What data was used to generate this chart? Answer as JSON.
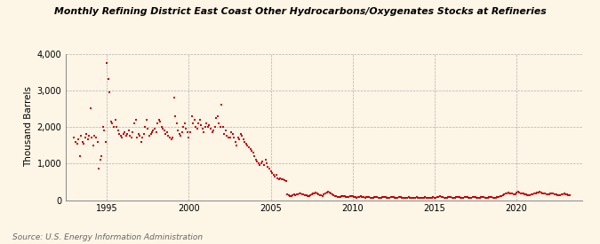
{
  "title": "Monthly Refining District East Coast Other Hydrocarbons/Oxygenates Stocks at Refineries",
  "ylabel": "Thousand Barrels",
  "source": "Source: U.S. Energy Information Administration",
  "background_color": "#fdf5e6",
  "dot_color": "#cc0000",
  "ylim": [
    0,
    4000
  ],
  "yticks": [
    0,
    1000,
    2000,
    3000,
    4000
  ],
  "ytick_labels": [
    "0",
    "1,000",
    "2,000",
    "3,000",
    "4,000"
  ],
  "xticks": [
    1995,
    2000,
    2005,
    2010,
    2015,
    2020
  ],
  "xlim_start": 1992.5,
  "xlim_end": 2024.0,
  "data": [
    [
      1993.0,
      1700
    ],
    [
      1993.08,
      1600
    ],
    [
      1993.17,
      1550
    ],
    [
      1993.25,
      1650
    ],
    [
      1993.33,
      1200
    ],
    [
      1993.42,
      1750
    ],
    [
      1993.5,
      1600
    ],
    [
      1993.58,
      1550
    ],
    [
      1993.67,
      1700
    ],
    [
      1993.75,
      1800
    ],
    [
      1993.83,
      1650
    ],
    [
      1993.92,
      1750
    ],
    [
      1994.0,
      2500
    ],
    [
      1994.08,
      1700
    ],
    [
      1994.17,
      1500
    ],
    [
      1994.25,
      1750
    ],
    [
      1994.33,
      1700
    ],
    [
      1994.42,
      1600
    ],
    [
      1994.5,
      850
    ],
    [
      1994.58,
      1100
    ],
    [
      1994.67,
      1200
    ],
    [
      1994.75,
      2000
    ],
    [
      1994.83,
      1900
    ],
    [
      1994.92,
      1600
    ],
    [
      1995.0,
      3750
    ],
    [
      1995.08,
      3300
    ],
    [
      1995.17,
      2950
    ],
    [
      1995.25,
      2150
    ],
    [
      1995.33,
      2100
    ],
    [
      1995.42,
      2000
    ],
    [
      1995.5,
      2200
    ],
    [
      1995.58,
      2000
    ],
    [
      1995.67,
      1900
    ],
    [
      1995.75,
      1800
    ],
    [
      1995.83,
      1750
    ],
    [
      1995.92,
      1700
    ],
    [
      1996.0,
      1800
    ],
    [
      1996.08,
      1850
    ],
    [
      1996.17,
      1750
    ],
    [
      1996.25,
      1800
    ],
    [
      1996.33,
      1900
    ],
    [
      1996.42,
      1750
    ],
    [
      1996.5,
      1700
    ],
    [
      1996.58,
      1850
    ],
    [
      1996.67,
      2100
    ],
    [
      1996.75,
      2200
    ],
    [
      1996.83,
      1700
    ],
    [
      1996.92,
      1800
    ],
    [
      1997.0,
      1750
    ],
    [
      1997.08,
      1600
    ],
    [
      1997.17,
      1700
    ],
    [
      1997.25,
      1800
    ],
    [
      1997.33,
      2000
    ],
    [
      1997.42,
      2200
    ],
    [
      1997.5,
      1950
    ],
    [
      1997.58,
      1750
    ],
    [
      1997.67,
      1800
    ],
    [
      1997.75,
      1850
    ],
    [
      1997.83,
      1900
    ],
    [
      1997.92,
      1950
    ],
    [
      1998.0,
      1850
    ],
    [
      1998.08,
      2100
    ],
    [
      1998.17,
      2200
    ],
    [
      1998.25,
      2150
    ],
    [
      1998.33,
      2000
    ],
    [
      1998.42,
      1950
    ],
    [
      1998.5,
      1900
    ],
    [
      1998.58,
      1800
    ],
    [
      1998.67,
      1850
    ],
    [
      1998.75,
      1750
    ],
    [
      1998.83,
      1700
    ],
    [
      1998.92,
      1650
    ],
    [
      1999.0,
      1700
    ],
    [
      1999.08,
      2800
    ],
    [
      1999.17,
      2300
    ],
    [
      1999.25,
      2100
    ],
    [
      1999.33,
      1900
    ],
    [
      1999.42,
      1800
    ],
    [
      1999.5,
      1750
    ],
    [
      1999.58,
      1850
    ],
    [
      1999.67,
      2000
    ],
    [
      1999.75,
      2100
    ],
    [
      1999.83,
      1950
    ],
    [
      1999.92,
      1850
    ],
    [
      2000.0,
      1700
    ],
    [
      2000.08,
      1850
    ],
    [
      2000.17,
      2300
    ],
    [
      2000.25,
      2100
    ],
    [
      2000.33,
      2200
    ],
    [
      2000.42,
      2000
    ],
    [
      2000.5,
      1950
    ],
    [
      2000.58,
      2100
    ],
    [
      2000.67,
      2200
    ],
    [
      2000.75,
      2050
    ],
    [
      2000.83,
      1950
    ],
    [
      2000.92,
      1850
    ],
    [
      2001.0,
      2000
    ],
    [
      2001.08,
      2100
    ],
    [
      2001.17,
      2000
    ],
    [
      2001.25,
      2050
    ],
    [
      2001.33,
      1950
    ],
    [
      2001.42,
      1850
    ],
    [
      2001.5,
      1900
    ],
    [
      2001.58,
      2000
    ],
    [
      2001.67,
      2250
    ],
    [
      2001.75,
      2300
    ],
    [
      2001.83,
      2100
    ],
    [
      2001.92,
      2000
    ],
    [
      2002.0,
      2600
    ],
    [
      2002.08,
      2000
    ],
    [
      2002.17,
      1800
    ],
    [
      2002.25,
      1900
    ],
    [
      2002.33,
      1750
    ],
    [
      2002.42,
      1700
    ],
    [
      2002.5,
      1700
    ],
    [
      2002.58,
      1850
    ],
    [
      2002.67,
      1800
    ],
    [
      2002.75,
      1700
    ],
    [
      2002.83,
      1600
    ],
    [
      2002.92,
      1500
    ],
    [
      2003.0,
      1700
    ],
    [
      2003.08,
      1650
    ],
    [
      2003.17,
      1800
    ],
    [
      2003.25,
      1750
    ],
    [
      2003.33,
      1650
    ],
    [
      2003.42,
      1600
    ],
    [
      2003.5,
      1550
    ],
    [
      2003.58,
      1500
    ],
    [
      2003.67,
      1450
    ],
    [
      2003.75,
      1400
    ],
    [
      2003.83,
      1350
    ],
    [
      2003.92,
      1300
    ],
    [
      2004.0,
      1200
    ],
    [
      2004.08,
      1100
    ],
    [
      2004.17,
      1050
    ],
    [
      2004.25,
      1000
    ],
    [
      2004.33,
      950
    ],
    [
      2004.42,
      1000
    ],
    [
      2004.5,
      1050
    ],
    [
      2004.58,
      950
    ],
    [
      2004.67,
      1100
    ],
    [
      2004.75,
      1000
    ],
    [
      2004.83,
      900
    ],
    [
      2004.92,
      850
    ],
    [
      2005.0,
      800
    ],
    [
      2005.08,
      750
    ],
    [
      2005.17,
      700
    ],
    [
      2005.25,
      650
    ],
    [
      2005.33,
      680
    ],
    [
      2005.42,
      600
    ],
    [
      2005.5,
      580
    ],
    [
      2005.58,
      600
    ],
    [
      2005.67,
      580
    ],
    [
      2005.75,
      560
    ],
    [
      2005.83,
      540
    ],
    [
      2005.92,
      520
    ],
    [
      2006.0,
      150
    ],
    [
      2006.08,
      130
    ],
    [
      2006.17,
      120
    ],
    [
      2006.25,
      110
    ],
    [
      2006.33,
      130
    ],
    [
      2006.42,
      150
    ],
    [
      2006.5,
      140
    ],
    [
      2006.58,
      160
    ],
    [
      2006.67,
      150
    ],
    [
      2006.75,
      170
    ],
    [
      2006.83,
      180
    ],
    [
      2006.92,
      160
    ],
    [
      2007.0,
      150
    ],
    [
      2007.08,
      140
    ],
    [
      2007.17,
      130
    ],
    [
      2007.25,
      120
    ],
    [
      2007.33,
      110
    ],
    [
      2007.42,
      130
    ],
    [
      2007.5,
      150
    ],
    [
      2007.58,
      170
    ],
    [
      2007.67,
      190
    ],
    [
      2007.75,
      200
    ],
    [
      2007.83,
      180
    ],
    [
      2007.92,
      160
    ],
    [
      2008.0,
      140
    ],
    [
      2008.08,
      130
    ],
    [
      2008.17,
      120
    ],
    [
      2008.25,
      150
    ],
    [
      2008.33,
      180
    ],
    [
      2008.42,
      200
    ],
    [
      2008.5,
      220
    ],
    [
      2008.58,
      200
    ],
    [
      2008.67,
      180
    ],
    [
      2008.75,
      160
    ],
    [
      2008.83,
      140
    ],
    [
      2008.92,
      120
    ],
    [
      2009.0,
      100
    ],
    [
      2009.08,
      90
    ],
    [
      2009.17,
      80
    ],
    [
      2009.25,
      90
    ],
    [
      2009.33,
      100
    ],
    [
      2009.42,
      110
    ],
    [
      2009.5,
      100
    ],
    [
      2009.58,
      90
    ],
    [
      2009.67,
      80
    ],
    [
      2009.75,
      90
    ],
    [
      2009.83,
      100
    ],
    [
      2009.92,
      110
    ],
    [
      2010.0,
      100
    ],
    [
      2010.08,
      90
    ],
    [
      2010.17,
      80
    ],
    [
      2010.25,
      70
    ],
    [
      2010.33,
      80
    ],
    [
      2010.42,
      90
    ],
    [
      2010.5,
      100
    ],
    [
      2010.58,
      90
    ],
    [
      2010.67,
      80
    ],
    [
      2010.75,
      70
    ],
    [
      2010.83,
      80
    ],
    [
      2010.92,
      90
    ],
    [
      2011.0,
      80
    ],
    [
      2011.08,
      70
    ],
    [
      2011.17,
      60
    ],
    [
      2011.25,
      70
    ],
    [
      2011.33,
      80
    ],
    [
      2011.42,
      90
    ],
    [
      2011.5,
      80
    ],
    [
      2011.58,
      70
    ],
    [
      2011.67,
      60
    ],
    [
      2011.75,
      70
    ],
    [
      2011.83,
      80
    ],
    [
      2011.92,
      90
    ],
    [
      2012.0,
      80
    ],
    [
      2012.08,
      70
    ],
    [
      2012.17,
      60
    ],
    [
      2012.25,
      70
    ],
    [
      2012.33,
      80
    ],
    [
      2012.42,
      90
    ],
    [
      2012.5,
      80
    ],
    [
      2012.58,
      70
    ],
    [
      2012.67,
      60
    ],
    [
      2012.75,
      70
    ],
    [
      2012.83,
      80
    ],
    [
      2012.92,
      90
    ],
    [
      2013.0,
      70
    ],
    [
      2013.08,
      60
    ],
    [
      2013.17,
      50
    ],
    [
      2013.25,
      60
    ],
    [
      2013.33,
      70
    ],
    [
      2013.42,
      80
    ],
    [
      2013.5,
      70
    ],
    [
      2013.58,
      60
    ],
    [
      2013.67,
      50
    ],
    [
      2013.75,
      60
    ],
    [
      2013.83,
      70
    ],
    [
      2013.92,
      80
    ],
    [
      2014.0,
      70
    ],
    [
      2014.08,
      60
    ],
    [
      2014.17,
      50
    ],
    [
      2014.25,
      60
    ],
    [
      2014.33,
      70
    ],
    [
      2014.42,
      80
    ],
    [
      2014.5,
      70
    ],
    [
      2014.58,
      60
    ],
    [
      2014.67,
      50
    ],
    [
      2014.75,
      60
    ],
    [
      2014.83,
      70
    ],
    [
      2014.92,
      80
    ],
    [
      2015.0,
      70
    ],
    [
      2015.08,
      60
    ],
    [
      2015.17,
      80
    ],
    [
      2015.25,
      90
    ],
    [
      2015.33,
      100
    ],
    [
      2015.42,
      90
    ],
    [
      2015.5,
      80
    ],
    [
      2015.58,
      70
    ],
    [
      2015.67,
      60
    ],
    [
      2015.75,
      70
    ],
    [
      2015.83,
      80
    ],
    [
      2015.92,
      90
    ],
    [
      2016.0,
      80
    ],
    [
      2016.08,
      70
    ],
    [
      2016.17,
      60
    ],
    [
      2016.25,
      70
    ],
    [
      2016.33,
      80
    ],
    [
      2016.42,
      90
    ],
    [
      2016.5,
      80
    ],
    [
      2016.58,
      70
    ],
    [
      2016.67,
      60
    ],
    [
      2016.75,
      70
    ],
    [
      2016.83,
      80
    ],
    [
      2016.92,
      90
    ],
    [
      2017.0,
      80
    ],
    [
      2017.08,
      70
    ],
    [
      2017.17,
      60
    ],
    [
      2017.25,
      70
    ],
    [
      2017.33,
      80
    ],
    [
      2017.42,
      90
    ],
    [
      2017.5,
      80
    ],
    [
      2017.58,
      70
    ],
    [
      2017.67,
      60
    ],
    [
      2017.75,
      70
    ],
    [
      2017.83,
      80
    ],
    [
      2017.92,
      90
    ],
    [
      2018.0,
      80
    ],
    [
      2018.08,
      70
    ],
    [
      2018.17,
      60
    ],
    [
      2018.25,
      70
    ],
    [
      2018.33,
      80
    ],
    [
      2018.42,
      90
    ],
    [
      2018.5,
      80
    ],
    [
      2018.58,
      70
    ],
    [
      2018.67,
      60
    ],
    [
      2018.75,
      70
    ],
    [
      2018.83,
      80
    ],
    [
      2018.92,
      90
    ],
    [
      2019.0,
      100
    ],
    [
      2019.08,
      110
    ],
    [
      2019.17,
      130
    ],
    [
      2019.25,
      150
    ],
    [
      2019.33,
      170
    ],
    [
      2019.42,
      180
    ],
    [
      2019.5,
      200
    ],
    [
      2019.58,
      190
    ],
    [
      2019.67,
      180
    ],
    [
      2019.75,
      170
    ],
    [
      2019.83,
      160
    ],
    [
      2019.92,
      150
    ],
    [
      2020.0,
      200
    ],
    [
      2020.08,
      220
    ],
    [
      2020.17,
      200
    ],
    [
      2020.25,
      190
    ],
    [
      2020.33,
      180
    ],
    [
      2020.42,
      170
    ],
    [
      2020.5,
      160
    ],
    [
      2020.58,
      150
    ],
    [
      2020.67,
      140
    ],
    [
      2020.75,
      130
    ],
    [
      2020.83,
      140
    ],
    [
      2020.92,
      150
    ],
    [
      2021.0,
      160
    ],
    [
      2021.08,
      170
    ],
    [
      2021.17,
      180
    ],
    [
      2021.25,
      200
    ],
    [
      2021.33,
      210
    ],
    [
      2021.42,
      220
    ],
    [
      2021.5,
      200
    ],
    [
      2021.58,
      190
    ],
    [
      2021.67,
      180
    ],
    [
      2021.75,
      170
    ],
    [
      2021.83,
      160
    ],
    [
      2021.92,
      150
    ],
    [
      2022.0,
      160
    ],
    [
      2022.08,
      170
    ],
    [
      2022.17,
      180
    ],
    [
      2022.25,
      170
    ],
    [
      2022.33,
      160
    ],
    [
      2022.42,
      150
    ],
    [
      2022.5,
      140
    ],
    [
      2022.58,
      130
    ],
    [
      2022.67,
      140
    ],
    [
      2022.75,
      150
    ],
    [
      2022.83,
      160
    ],
    [
      2022.92,
      170
    ],
    [
      2023.0,
      160
    ],
    [
      2023.08,
      150
    ],
    [
      2023.17,
      140
    ],
    [
      2023.25,
      130
    ]
  ]
}
